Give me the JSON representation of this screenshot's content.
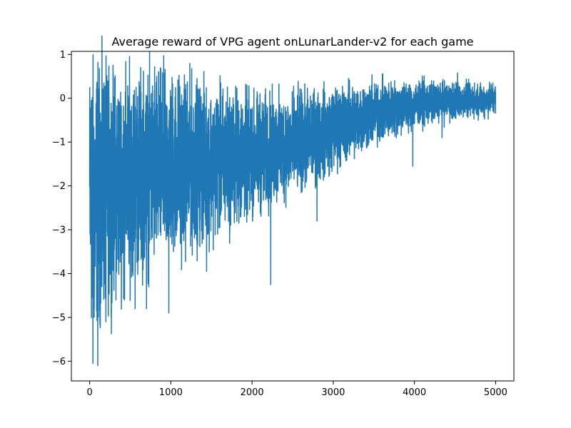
{
  "chart_data": {
    "type": "line",
    "title": "Average reward of VPG agent onLunarLander-v2 for each game",
    "xlabel": "",
    "ylabel": "",
    "xlim": [
      -225,
      5225
    ],
    "ylim": [
      -6.45,
      1.07
    ],
    "xticks": [
      0,
      1000,
      2000,
      3000,
      4000,
      5000
    ],
    "xtick_labels": [
      "0",
      "1000",
      "2000",
      "3000",
      "4000",
      "5000"
    ],
    "yticks": [
      1,
      0,
      -1,
      -2,
      -3,
      -4,
      -5,
      -6
    ],
    "ytick_labels": [
      "1",
      "0",
      "−1",
      "−2",
      "−3",
      "−4",
      "−5",
      "−6"
    ],
    "grid": false,
    "legend": "none",
    "series": [
      {
        "color": "#1f77b4",
        "num_points": 5000,
        "trend_x": [
          0,
          250,
          500,
          750,
          1000,
          1250,
          1500,
          1750,
          2000,
          2250,
          2500,
          2750,
          3000,
          3250,
          3500,
          3750,
          4000,
          4250,
          4500,
          4750,
          5000
        ],
        "trend_mean": [
          -2.3,
          -2.0,
          -1.75,
          -1.65,
          -1.55,
          -1.5,
          -1.45,
          -1.4,
          -1.3,
          -1.2,
          -1.05,
          -0.9,
          -0.7,
          -0.5,
          -0.35,
          -0.25,
          -0.15,
          -0.1,
          -0.05,
          -0.05,
          0.0
        ],
        "trend_spread": [
          1.5,
          1.2,
          1.1,
          1.05,
          1.0,
          0.9,
          0.8,
          0.75,
          0.65,
          0.6,
          0.55,
          0.5,
          0.45,
          0.4,
          0.35,
          0.3,
          0.25,
          0.22,
          0.2,
          0.18,
          0.18
        ],
        "highlights": [
          {
            "x": 20,
            "y": -0.05
          },
          {
            "x": 28,
            "y": -4.55
          },
          {
            "x": 40,
            "y": -6.05
          },
          {
            "x": 55,
            "y": -5.0
          },
          {
            "x": 100,
            "y": -6.1
          },
          {
            "x": 150,
            "y": -4.3
          },
          {
            "x": 200,
            "y": -5.1
          },
          {
            "x": 270,
            "y": -4.6
          },
          {
            "x": 430,
            "y": -4.6
          },
          {
            "x": 560,
            "y": -4.8
          },
          {
            "x": 700,
            "y": -4.8
          },
          {
            "x": 800,
            "y": 0.72
          },
          {
            "x": 930,
            "y": 0.35
          },
          {
            "x": 975,
            "y": -4.9
          },
          {
            "x": 1180,
            "y": 0.2
          },
          {
            "x": 1440,
            "y": -3.95
          },
          {
            "x": 2230,
            "y": -4.25
          },
          {
            "x": 2800,
            "y": -2.8
          },
          {
            "x": 3980,
            "y": -1.55
          },
          {
            "x": 4340,
            "y": -0.9
          },
          {
            "x": 4530,
            "y": 0.58
          }
        ]
      }
    ]
  }
}
